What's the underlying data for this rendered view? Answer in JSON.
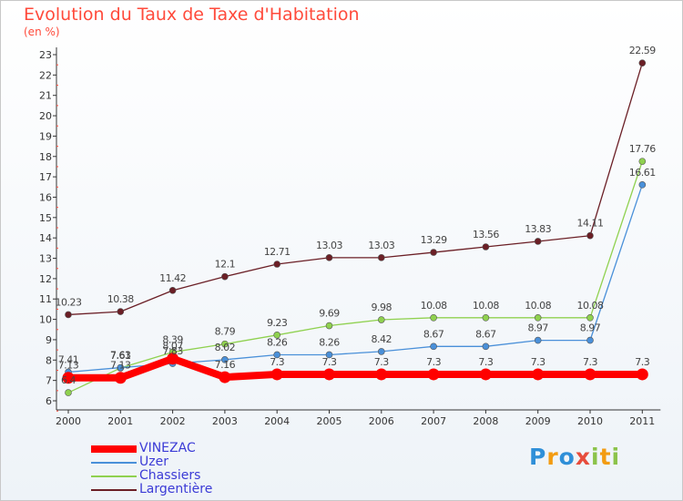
{
  "title": "Evolution du Taux de Taxe d'Habitation",
  "unit_label": "(en %)",
  "logo_letters": [
    {
      "ch": "P",
      "color": "#2f8fd8"
    },
    {
      "ch": "r",
      "color": "#f39c12"
    },
    {
      "ch": "o",
      "color": "#2f8fd8"
    },
    {
      "ch": "x",
      "color": "#e74c3c"
    },
    {
      "ch": "i",
      "color": "#8bc34a"
    },
    {
      "ch": "t",
      "color": "#f39c12"
    },
    {
      "ch": "i",
      "color": "#8bc34a"
    }
  ],
  "chart_data": {
    "type": "line",
    "title": "Evolution du Taux de Taxe d'Habitation",
    "ylabel": "(en %)",
    "xlabel": "",
    "x": [
      2000,
      2001,
      2002,
      2003,
      2004,
      2005,
      2006,
      2007,
      2008,
      2009,
      2010,
      2011
    ],
    "ylim": [
      6,
      23
    ],
    "yticks": [
      6,
      7,
      8,
      9,
      10,
      11,
      12,
      13,
      14,
      15,
      16,
      17,
      18,
      19,
      20,
      21,
      22,
      23
    ],
    "grid": false,
    "legend_position": "bottom-left",
    "series": [
      {
        "name": "VINEZAC",
        "color": "#ff0000",
        "values": [
          7.13,
          7.13,
          8.07,
          7.16,
          7.3,
          7.3,
          7.3,
          7.3,
          7.3,
          7.3,
          7.3,
          7.3
        ],
        "labels": [
          "7.13",
          "7.13",
          "8.07",
          "7.16",
          "7.3",
          "7.3",
          "7.3",
          "7.3",
          "7.3",
          "7.3",
          "7.3",
          "7.3"
        ]
      },
      {
        "name": "Uzer",
        "color": "#4a90d9",
        "values": [
          7.41,
          7.63,
          7.83,
          8.02,
          8.26,
          8.26,
          8.42,
          8.67,
          8.67,
          8.97,
          8.97,
          16.61
        ],
        "labels": [
          "7.41",
          "7.63",
          "7.83",
          "8.02",
          "8.26",
          "8.26",
          "8.42",
          "8.67",
          "8.67",
          "8.97",
          "8.97",
          "16.61"
        ]
      },
      {
        "name": "Chassiers",
        "color": "#8fd14f",
        "values": [
          6.4,
          7.61,
          8.39,
          8.79,
          9.23,
          9.69,
          9.98,
          10.08,
          10.08,
          10.08,
          10.08,
          17.76
        ],
        "labels": [
          "6.4",
          "7.61",
          "8.39",
          "8.79",
          "9.23",
          "9.69",
          "9.98",
          "10.08",
          "10.08",
          "10.08",
          "10.08",
          "17.76"
        ]
      },
      {
        "name": "Largentière",
        "color": "#6b1f26",
        "values": [
          10.23,
          10.38,
          11.42,
          12.1,
          12.71,
          13.03,
          13.03,
          13.29,
          13.56,
          13.83,
          14.11,
          22.59
        ],
        "labels": [
          "10.23",
          "10.38",
          "11.42",
          "12.1",
          "12.71",
          "13.03",
          "13.03",
          "13.29",
          "13.56",
          "13.83",
          "14.11",
          "22.59"
        ]
      }
    ]
  }
}
